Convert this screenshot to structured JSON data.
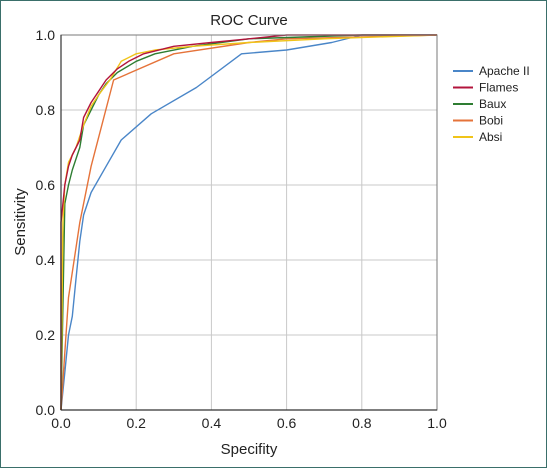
{
  "chart_data": {
    "type": "line",
    "title": "ROC Curve",
    "xlabel": "Specifity",
    "ylabel": "Sensitivity",
    "xlim": [
      0,
      1
    ],
    "ylim": [
      0,
      1
    ],
    "xticks": [
      "0.0",
      "0.2",
      "0.4",
      "0.6",
      "0.8",
      "1.0"
    ],
    "yticks": [
      "0.0",
      "0.2",
      "0.4",
      "0.6",
      "0.8",
      "1.0"
    ],
    "grid": true,
    "legend_position": "right",
    "series": [
      {
        "name": "Apache II",
        "color": "#4a86c8",
        "points": [
          [
            0,
            0
          ],
          [
            0.01,
            0.1
          ],
          [
            0.02,
            0.2
          ],
          [
            0.03,
            0.25
          ],
          [
            0.04,
            0.35
          ],
          [
            0.05,
            0.45
          ],
          [
            0.06,
            0.52
          ],
          [
            0.08,
            0.58
          ],
          [
            0.12,
            0.65
          ],
          [
            0.16,
            0.72
          ],
          [
            0.24,
            0.79
          ],
          [
            0.36,
            0.86
          ],
          [
            0.48,
            0.95
          ],
          [
            0.6,
            0.96
          ],
          [
            0.72,
            0.98
          ],
          [
            0.8,
            1.0
          ],
          [
            1.0,
            1.0
          ]
        ]
      },
      {
        "name": "Flames",
        "color": "#b3143c",
        "points": [
          [
            0,
            0
          ],
          [
            0,
            0.5
          ],
          [
            0.01,
            0.6
          ],
          [
            0.02,
            0.65
          ],
          [
            0.03,
            0.68
          ],
          [
            0.05,
            0.72
          ],
          [
            0.06,
            0.78
          ],
          [
            0.08,
            0.82
          ],
          [
            0.1,
            0.85
          ],
          [
            0.12,
            0.88
          ],
          [
            0.15,
            0.91
          ],
          [
            0.18,
            0.93
          ],
          [
            0.22,
            0.95
          ],
          [
            0.3,
            0.97
          ],
          [
            0.4,
            0.98
          ],
          [
            0.5,
            0.99
          ],
          [
            0.6,
            1.0
          ],
          [
            1.0,
            1.0
          ]
        ]
      },
      {
        "name": "Baux",
        "color": "#2e7d32",
        "points": [
          [
            0,
            0
          ],
          [
            0.01,
            0.55
          ],
          [
            0.02,
            0.6
          ],
          [
            0.03,
            0.64
          ],
          [
            0.05,
            0.7
          ],
          [
            0.06,
            0.76
          ],
          [
            0.08,
            0.8
          ],
          [
            0.1,
            0.84
          ],
          [
            0.12,
            0.87
          ],
          [
            0.15,
            0.9
          ],
          [
            0.2,
            0.93
          ],
          [
            0.25,
            0.95
          ],
          [
            0.35,
            0.97
          ],
          [
            0.5,
            0.99
          ],
          [
            0.8,
            1.0
          ],
          [
            1.0,
            1.0
          ]
        ]
      },
      {
        "name": "Bobi",
        "color": "#e5733a",
        "points": [
          [
            0,
            0
          ],
          [
            0.02,
            0.3
          ],
          [
            0.05,
            0.5
          ],
          [
            0.08,
            0.65
          ],
          [
            0.14,
            0.88
          ],
          [
            0.3,
            0.95
          ],
          [
            0.5,
            0.98
          ],
          [
            0.6,
            0.99
          ],
          [
            1.0,
            1.0
          ]
        ]
      },
      {
        "name": "Absi",
        "color": "#f0c419",
        "points": [
          [
            0,
            0
          ],
          [
            0.005,
            0.5
          ],
          [
            0.01,
            0.6
          ],
          [
            0.02,
            0.66
          ],
          [
            0.04,
            0.7
          ],
          [
            0.06,
            0.76
          ],
          [
            0.08,
            0.81
          ],
          [
            0.1,
            0.84
          ],
          [
            0.13,
            0.88
          ],
          [
            0.16,
            0.93
          ],
          [
            0.2,
            0.95
          ],
          [
            0.25,
            0.96
          ],
          [
            0.35,
            0.97
          ],
          [
            0.5,
            0.98
          ],
          [
            0.7,
            0.99
          ],
          [
            1.0,
            1.0
          ]
        ]
      }
    ]
  }
}
